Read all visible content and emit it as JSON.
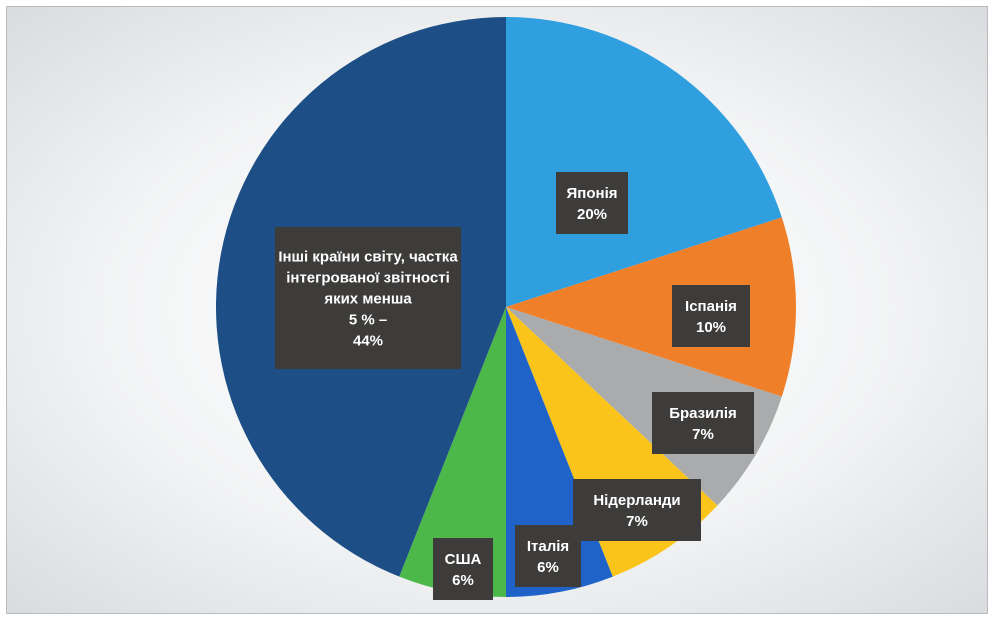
{
  "chart_data": {
    "type": "pie",
    "start_angle_deg": 0,
    "direction": "clockwise",
    "slices": [
      {
        "label": "Японія",
        "value": 20,
        "value_label": "20%",
        "color": "#2f9fe0"
      },
      {
        "label": "Іспанія",
        "value": 10,
        "value_label": "10%",
        "color": "#f07f2a"
      },
      {
        "label": "Бразилія",
        "value": 7,
        "value_label": "7%",
        "color": "#a9abad"
      },
      {
        "label": "Нідерланди",
        "value": 7,
        "value_label": "7%",
        "color": "#fbc41a"
      },
      {
        "label": "Італія",
        "value": 6,
        "value_label": "6%",
        "color": "#1f63c8"
      },
      {
        "label": "США",
        "value": 6,
        "value_label": "6%",
        "color": "#4cb84a"
      },
      {
        "label": "Інші країни світу, частка інтегрованої звітності яких менша 5 % –",
        "value": 44,
        "value_label": "44%",
        "color": "#1d4f86"
      }
    ],
    "legend": "none",
    "data_labels": "inside, dark boxes"
  }
}
